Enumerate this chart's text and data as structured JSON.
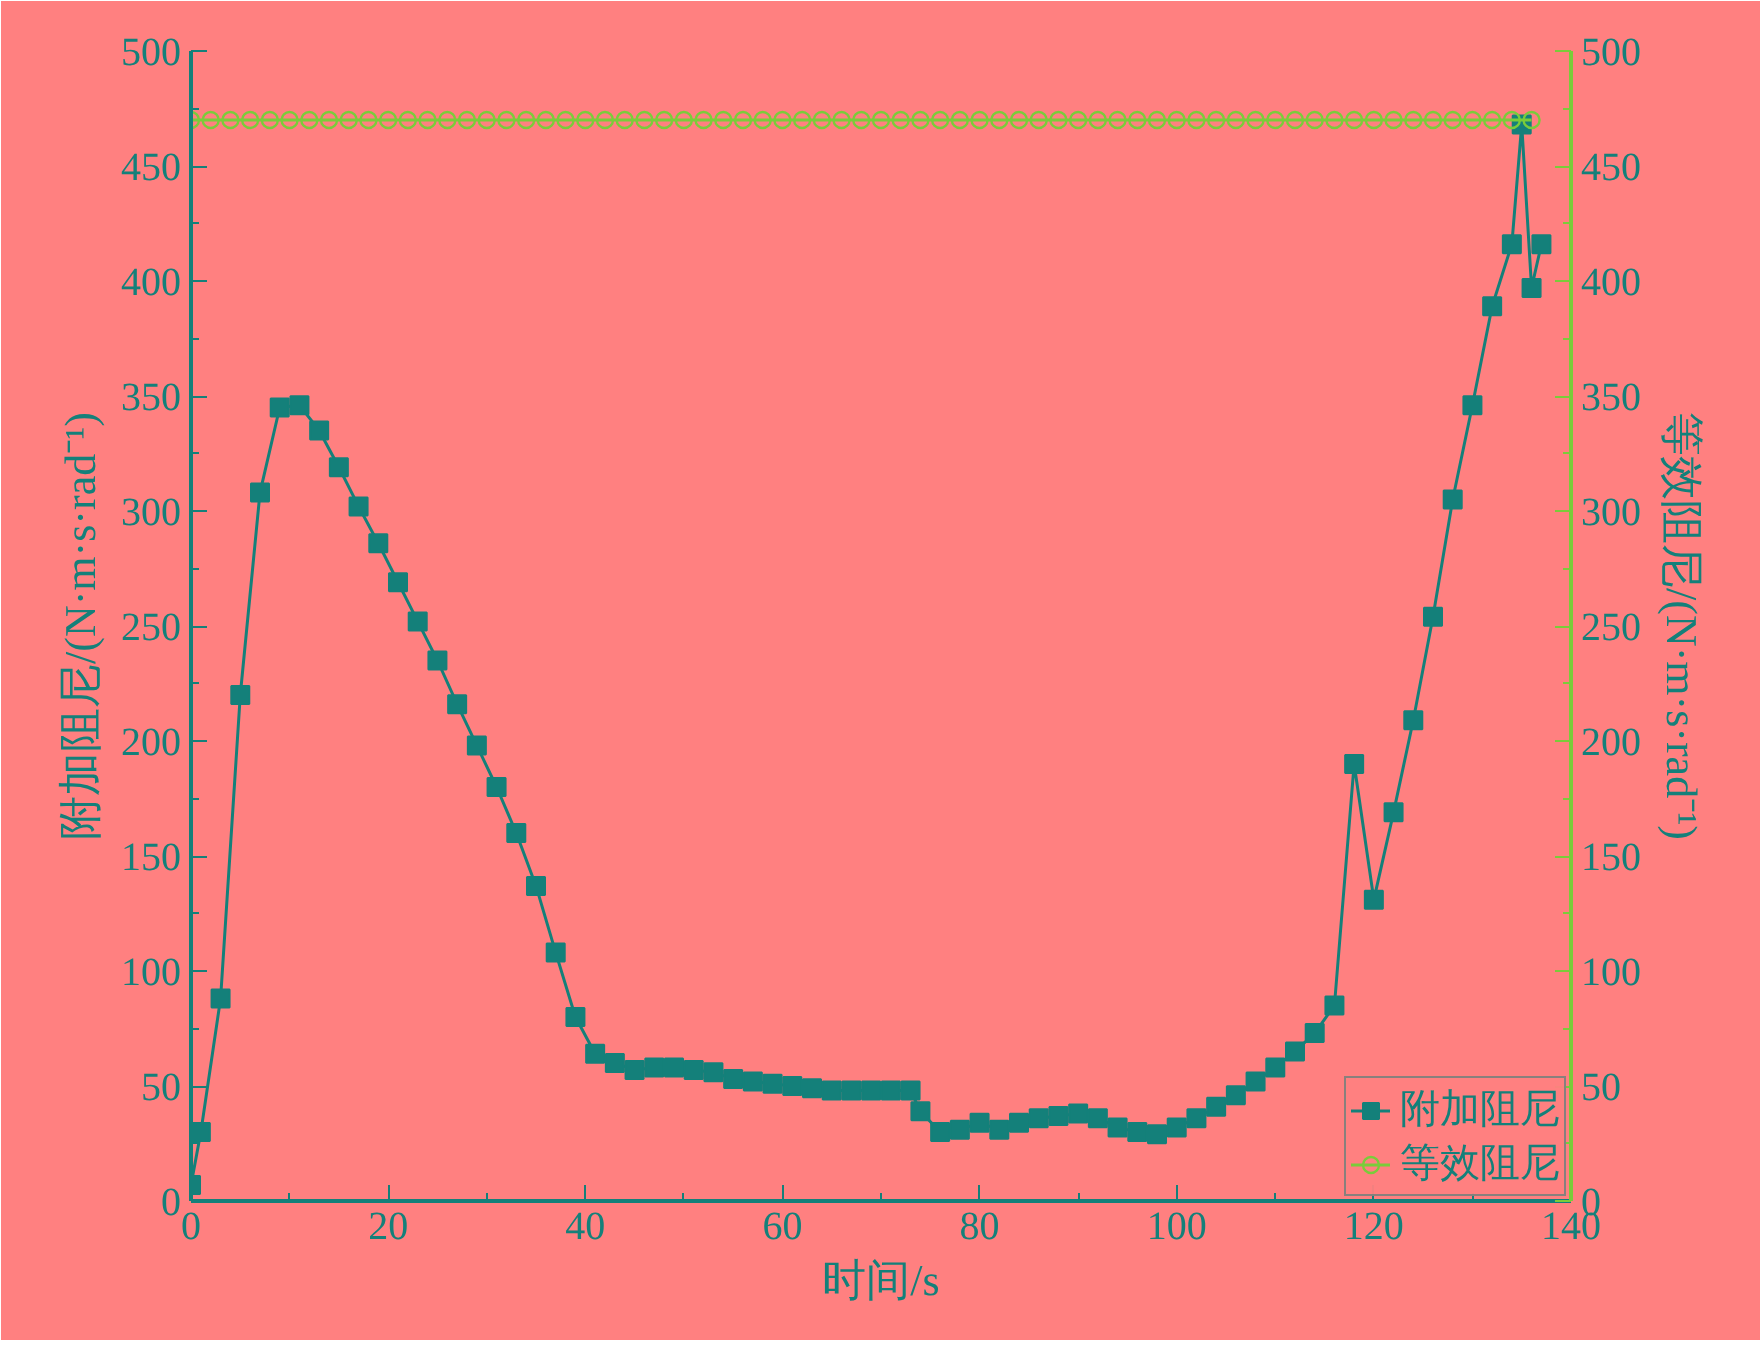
{
  "chart_data": {
    "type": "line",
    "xlabel": "时间/s",
    "ylabel": "附加阻尼/(N·m·s·rad⁻¹)",
    "y2label": "等效阻尼/(N·m·s·rad⁻¹)",
    "xlim": [
      0,
      140
    ],
    "xticks": [
      0,
      {
        "value": 10,
        "label": null
      },
      20,
      {
        "value": 30,
        "label": null
      },
      40,
      {
        "value": 50,
        "label": null
      },
      60,
      {
        "value": 70,
        "label": null
      },
      80,
      {
        "value": 90,
        "label": null
      },
      100,
      {
        "value": 110,
        "label": null
      },
      120,
      {
        "value": 130,
        "label": null
      },
      140
    ],
    "ylim": [
      0,
      500
    ],
    "yticks": [
      0,
      {
        "value": 25,
        "label": null
      },
      50,
      {
        "value": 75,
        "label": null
      },
      100,
      {
        "value": 125,
        "label": null
      },
      150,
      {
        "value": 175,
        "label": null
      },
      200,
      {
        "value": 225,
        "label": null
      },
      250,
      {
        "value": 275,
        "label": null
      },
      300,
      {
        "value": 325,
        "label": null
      },
      350,
      {
        "value": 375,
        "label": null
      },
      400,
      {
        "value": 425,
        "label": null
      },
      450,
      {
        "value": 475,
        "label": null
      },
      500
    ],
    "y2lim": [
      0,
      500
    ],
    "y2ticks": [
      0,
      {
        "value": 25,
        "label": null
      },
      50,
      {
        "value": 75,
        "label": null
      },
      100,
      {
        "value": 125,
        "label": null
      },
      150,
      {
        "value": 175,
        "label": null
      },
      200,
      {
        "value": 225,
        "label": null
      },
      250,
      {
        "value": 275,
        "label": null
      },
      300,
      {
        "value": 325,
        "label": null
      },
      350,
      {
        "value": 375,
        "label": null
      },
      400,
      {
        "value": 425,
        "label": null
      },
      450,
      {
        "value": 475,
        "label": null
      },
      500
    ],
    "grid": false,
    "legend": "bottom right",
    "line_style": "solid",
    "series": [
      {
        "name": "附加阻尼",
        "color": "#14807a",
        "marker": "square",
        "x": [
          0,
          1,
          3,
          5,
          7,
          9,
          11,
          13,
          15,
          17,
          19,
          21,
          23,
          25,
          27,
          29,
          31,
          33,
          35,
          37,
          39,
          41,
          43,
          45,
          47,
          49,
          51,
          53,
          55,
          57,
          59,
          61,
          63,
          65,
          67,
          69,
          71,
          73,
          74,
          76,
          78,
          80,
          82,
          84,
          86,
          88,
          90,
          92,
          94,
          96,
          98,
          100,
          102,
          104,
          106,
          108,
          110,
          112,
          114,
          116,
          118,
          120,
          122,
          124,
          126,
          128,
          130,
          132,
          134,
          135,
          136,
          137
        ],
        "values": [
          7,
          30,
          88,
          220,
          308,
          345,
          346,
          335,
          319,
          302,
          286,
          269,
          252,
          235,
          216,
          198,
          180,
          160,
          137,
          108,
          80,
          64,
          60,
          57,
          58,
          58,
          57,
          56,
          53,
          52,
          51,
          50,
          49,
          48,
          48,
          48,
          48,
          48,
          39,
          30,
          31,
          34,
          31,
          34,
          36,
          37,
          38,
          36,
          32,
          30,
          29,
          32,
          36,
          41,
          46,
          52,
          58,
          65,
          73,
          85,
          190,
          131,
          169,
          209,
          254,
          305,
          346,
          389,
          416,
          468,
          397,
          416
        ]
      },
      {
        "name": "等效阻尼",
        "color": "#7acc3a",
        "marker": "circle",
        "axis": "y2",
        "x": [
          0,
          2,
          4,
          6,
          8,
          10,
          12,
          14,
          16,
          18,
          20,
          22,
          24,
          26,
          28,
          30,
          32,
          34,
          36,
          38,
          40,
          42,
          44,
          46,
          48,
          50,
          52,
          54,
          56,
          58,
          60,
          62,
          64,
          66,
          68,
          70,
          72,
          74,
          76,
          78,
          80,
          82,
          84,
          86,
          88,
          90,
          92,
          94,
          96,
          98,
          100,
          102,
          104,
          106,
          108,
          110,
          112,
          114,
          116,
          118,
          120,
          122,
          124,
          126,
          128,
          130,
          132,
          134,
          136
        ],
        "values": [
          470,
          470,
          470,
          470,
          470,
          470,
          470,
          470,
          470,
          470,
          470,
          470,
          470,
          470,
          470,
          470,
          470,
          470,
          470,
          470,
          470,
          470,
          470,
          470,
          470,
          470,
          470,
          470,
          470,
          470,
          470,
          470,
          470,
          470,
          470,
          470,
          470,
          470,
          470,
          470,
          470,
          470,
          470,
          470,
          470,
          470,
          470,
          470,
          470,
          470,
          470,
          470,
          470,
          470,
          470,
          470,
          470,
          470,
          470,
          470,
          470,
          470,
          470,
          470,
          470,
          470,
          470,
          470,
          470
        ]
      }
    ]
  }
}
